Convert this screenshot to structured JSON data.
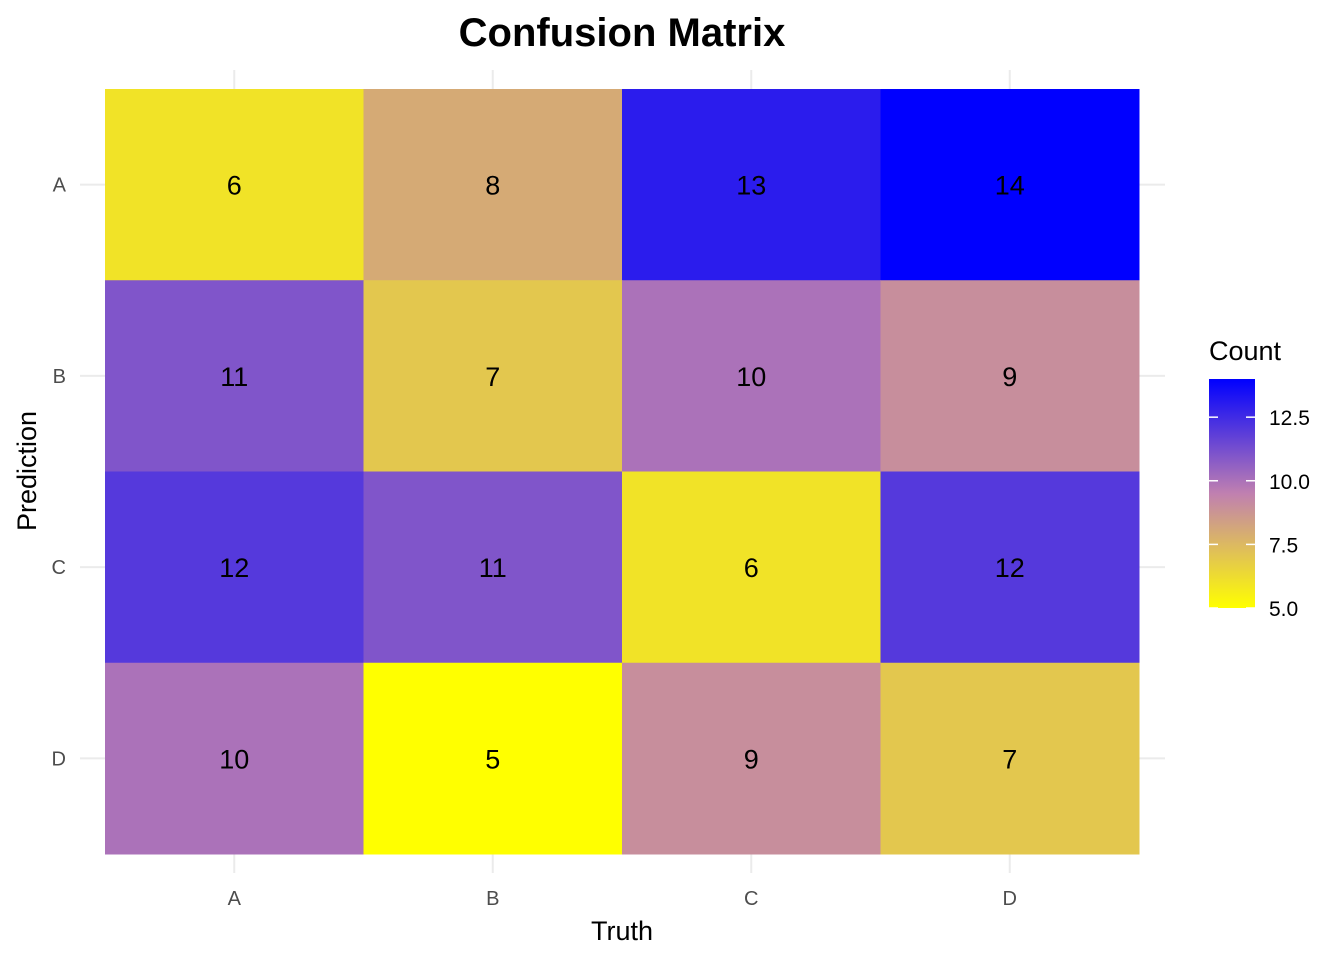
{
  "chart_data": {
    "type": "heatmap",
    "title": "Confusion Matrix",
    "xlabel": "Truth",
    "ylabel": "Prediction",
    "x_categories": [
      "A",
      "B",
      "C",
      "D"
    ],
    "y_categories": [
      "A",
      "B",
      "C",
      "D"
    ],
    "values": [
      [
        6,
        8,
        13,
        14
      ],
      [
        11,
        7,
        10,
        9
      ],
      [
        12,
        11,
        6,
        12
      ],
      [
        10,
        5,
        9,
        7
      ]
    ],
    "legend": {
      "title": "Count",
      "range": [
        5,
        14
      ],
      "ticks": [
        {
          "value": 5,
          "label": "5.0"
        },
        {
          "value": 7.5,
          "label": "7.5"
        },
        {
          "value": 10,
          "label": "10.0"
        },
        {
          "value": 12.5,
          "label": "12.5"
        }
      ],
      "placement": "right"
    },
    "colors": {
      "low": "#ffff00",
      "mid": "#c080b0",
      "high": "#0000ff"
    },
    "grid": true
  }
}
